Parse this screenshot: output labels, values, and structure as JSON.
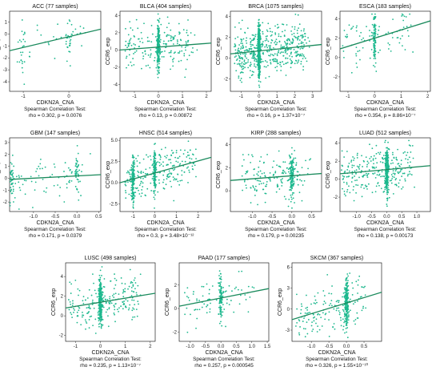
{
  "chart_data": [
    {
      "type": "scatter",
      "title": "ACC (77 samples)",
      "xlabel": "CDKN2A_CNA",
      "ylabel": "CCR6_exp",
      "xlim": [
        -1.3,
        0.7
      ],
      "ylim": [
        -4.8,
        1.9
      ],
      "xticks": [
        -1,
        0
      ],
      "yticks": [
        -4,
        -3,
        -2,
        -1,
        0,
        1
      ],
      "test_label": "Spearman Correlation Test:",
      "stats": "rho = 0.302, p = 0.0076",
      "trend": [
        [
          -1.3,
          -1.4
        ],
        [
          0.7,
          0.4
        ]
      ],
      "scatter": {
        "n": 77,
        "seed": 11,
        "xmin": -1.2,
        "xmax": 0.6,
        "ymin": -4.5,
        "ymax": 1.6,
        "clusters": [
          -1,
          0
        ]
      },
      "color": "#1db88e",
      "trend_color": "#1a8a5c"
    },
    {
      "type": "scatter",
      "title": "BLCA (404 samples)",
      "xlabel": "CDKN2A_CNA",
      "ylabel": "CCR6_exp",
      "xlim": [
        -1.6,
        2.2
      ],
      "ylim": [
        -4.8,
        4.5
      ],
      "xticks": [
        -1,
        0,
        1,
        2
      ],
      "yticks": [
        -4,
        -2,
        0,
        2,
        4
      ],
      "test_label": "Spearman Correlation Test:",
      "stats": "rho = 0.13, p = 0.00872",
      "trend": [
        [
          -1.6,
          0.0
        ],
        [
          2.2,
          0.8
        ]
      ],
      "scatter": {
        "n": 404,
        "seed": 23,
        "xmin": -1.4,
        "xmax": 2.0,
        "ymin": -4.5,
        "ymax": 4.2,
        "clusters": [
          0
        ]
      },
      "color": "#1db88e",
      "trend_color": "#1a8a5c"
    },
    {
      "type": "scatter",
      "title": "BRCA (1075 samples)",
      "xlabel": "CDKN2A_CNA",
      "ylabel": "CCR6_exp",
      "xlim": [
        -1.6,
        3.5
      ],
      "ylim": [
        -3.2,
        4.5
      ],
      "xticks": [
        -1,
        0,
        1,
        2,
        3
      ],
      "yticks": [
        -2,
        0,
        2,
        4
      ],
      "test_label": "Spearman Correlation Test:",
      "stats": "rho = 0.16, p = 1.37×10⁻⁷",
      "trend": [
        [
          -1.6,
          0.4
        ],
        [
          3.5,
          1.3
        ]
      ],
      "scatter": {
        "n": 1075,
        "seed": 37,
        "xmin": -1.4,
        "xmax": 3.3,
        "ymin": -2.8,
        "ymax": 4.2,
        "clusters": [
          0
        ]
      },
      "color": "#1db88e",
      "trend_color": "#1a8a5c"
    },
    {
      "type": "scatter",
      "title": "ESCA (183 samples)",
      "xlabel": "CDKN2A_CNA",
      "ylabel": "CCR6_exp",
      "xlim": [
        -1.3,
        2.1
      ],
      "ylim": [
        -3.5,
        4.8
      ],
      "xticks": [
        -1,
        0,
        1,
        2
      ],
      "yticks": [
        -2,
        0,
        2,
        4
      ],
      "test_label": "Spearman Correlation Test:",
      "stats": "rho = 0.354, p = 8.86×10⁻⁷",
      "trend": [
        [
          -1.3,
          0.9
        ],
        [
          2.1,
          3.8
        ]
      ],
      "scatter": {
        "n": 183,
        "seed": 41,
        "xmin": -1.2,
        "xmax": 1.9,
        "ymin": -3.2,
        "ymax": 4.5,
        "clusters": [
          0
        ]
      },
      "color": "#1db88e",
      "trend_color": "#1a8a5c"
    },
    {
      "type": "scatter",
      "title": "GBM (147 samples)",
      "xlabel": "CDKN2A_CNA",
      "ylabel": "CCR6_exp",
      "xlim": [
        -1.55,
        0.55
      ],
      "ylim": [
        -2.8,
        3.4
      ],
      "xticks": [
        -1.0,
        -0.5,
        0.0,
        0.5
      ],
      "yticks": [
        -2,
        -1,
        0,
        1,
        2,
        3
      ],
      "test_label": "Spearman Correlation Test:",
      "stats": "rho = 0.171, p = 0.0379",
      "trend": [
        [
          -1.55,
          -0.1
        ],
        [
          0.55,
          0.3
        ]
      ],
      "scatter": {
        "n": 147,
        "seed": 53,
        "xmin": -1.5,
        "xmax": 0.5,
        "ymin": -2.6,
        "ymax": 3.2,
        "clusters": [
          -1.5,
          0
        ]
      },
      "color": "#1db88e",
      "trend_color": "#1a8a5c"
    },
    {
      "type": "scatter",
      "title": "HNSC (514 samples)",
      "xlabel": "CDKN2A_CNA",
      "ylabel": "CCR6_exp",
      "xlim": [
        -1.6,
        2.6
      ],
      "ylim": [
        -3.4,
        5.3
      ],
      "xticks": [
        -1,
        0,
        1,
        2
      ],
      "yticks": [
        -2.5,
        0.0,
        2.5,
        5.0
      ],
      "test_label": "Spearman Correlation Test:",
      "stats": "rho = 0.3, p = 3.48×10⁻¹²",
      "trend": [
        [
          -1.6,
          0.0
        ],
        [
          2.6,
          3.0
        ]
      ],
      "scatter": {
        "n": 514,
        "seed": 67,
        "xmin": -1.4,
        "xmax": 2.4,
        "ymin": -3.0,
        "ymax": 5.0,
        "clusters": [
          -1,
          0
        ]
      },
      "color": "#1db88e",
      "trend_color": "#1a8a5c"
    },
    {
      "type": "scatter",
      "title": "KIRP (288 samples)",
      "xlabel": "CDKN2A_CNA",
      "ylabel": "CCR6_exp",
      "xlim": [
        -1.55,
        0.75
      ],
      "ylim": [
        -1.8,
        4.6
      ],
      "xticks": [
        -1.0,
        -0.5,
        0.0,
        0.5
      ],
      "yticks": [
        0,
        2,
        4
      ],
      "test_label": "Spearman Correlation Test:",
      "stats": "rho = 0.179, p = 0.00235",
      "trend": [
        [
          -1.55,
          0.9
        ],
        [
          0.75,
          1.5
        ]
      ],
      "scatter": {
        "n": 288,
        "seed": 71,
        "xmin": -1.3,
        "xmax": 0.7,
        "ymin": -1.5,
        "ymax": 4.3,
        "clusters": [
          0
        ]
      },
      "color": "#1db88e",
      "trend_color": "#1a8a5c"
    },
    {
      "type": "scatter",
      "title": "LUAD (512 samples)",
      "xlabel": "CDKN2A_CNA",
      "ylabel": "CCR6_exp",
      "xlim": [
        -1.55,
        1.45
      ],
      "ylim": [
        -3.6,
        4.6
      ],
      "xticks": [
        -1.0,
        -0.5,
        0.0,
        0.5,
        1.0
      ],
      "yticks": [
        -2,
        0,
        2,
        4
      ],
      "test_label": "Spearman Correlation Test:",
      "stats": "rho = 0.138, p = 0.00173",
      "trend": [
        [
          -1.55,
          0.6
        ],
        [
          1.45,
          1.5
        ]
      ],
      "scatter": {
        "n": 512,
        "seed": 83,
        "xmin": -1.5,
        "xmax": 1.3,
        "ymin": -3.3,
        "ymax": 4.3,
        "clusters": [
          0
        ]
      },
      "color": "#1db88e",
      "trend_color": "#1a8a5c"
    },
    {
      "type": "scatter",
      "title": "LUSC (498 samples)",
      "xlabel": "CDKN2A_CNA",
      "ylabel": "CCR6_exp",
      "xlim": [
        -1.4,
        2.2
      ],
      "ylim": [
        -2.6,
        5.4
      ],
      "xticks": [
        -1,
        0,
        1,
        2
      ],
      "yticks": [
        -2,
        0,
        2,
        4
      ],
      "test_label": "Spearman Correlation Test:",
      "stats": "rho = 0.235, p = 1.13×10⁻⁷",
      "trend": [
        [
          -1.4,
          0.8
        ],
        [
          2.2,
          2.3
        ]
      ],
      "scatter": {
        "n": 498,
        "seed": 97,
        "xmin": -1.3,
        "xmax": 2.0,
        "ymin": -2.3,
        "ymax": 5.0,
        "clusters": [
          0
        ]
      },
      "color": "#1db88e",
      "trend_color": "#1a8a5c"
    },
    {
      "type": "scatter",
      "title": "PAAD (177 samples)",
      "xlabel": "CDKN2A_CNA",
      "ylabel": "CCR6_exp",
      "xlim": [
        -1.35,
        1.55
      ],
      "ylim": [
        -2.8,
        3.9
      ],
      "xticks": [
        -1.0,
        -0.5,
        0.0,
        0.5,
        1.0,
        1.5
      ],
      "yticks": [
        -2,
        0,
        2
      ],
      "test_label": "Spearman Correlation Test:",
      "stats": "rho = 0.257, p = 0.000545",
      "trend": [
        [
          -1.35,
          0.2
        ],
        [
          1.55,
          1.7
        ]
      ],
      "scatter": {
        "n": 177,
        "seed": 101,
        "xmin": -1.25,
        "xmax": 1.45,
        "ymin": -2.6,
        "ymax": 3.6,
        "clusters": [
          0
        ]
      },
      "color": "#1db88e",
      "trend_color": "#1a8a5c"
    },
    {
      "type": "scatter",
      "title": "SKCM (367 samples)",
      "xlabel": "CDKN2A_CNA",
      "ylabel": "CCR6_exp",
      "xlim": [
        -1.55,
        1.0
      ],
      "ylim": [
        -4.6,
        6.6
      ],
      "xticks": [
        -1.0,
        -0.5,
        0.0,
        0.5
      ],
      "yticks": [
        -3,
        0,
        3,
        6
      ],
      "test_label": "Spearman Correlation Test:",
      "stats": "rho = 0.326, p = 1.55×10⁻¹⁰",
      "trend": [
        [
          -1.55,
          -1.5
        ],
        [
          1.0,
          2.4
        ]
      ],
      "scatter": {
        "n": 367,
        "seed": 113,
        "xmin": -1.45,
        "xmax": 0.9,
        "ymin": -4.3,
        "ymax": 6.3,
        "clusters": [
          0
        ]
      },
      "color": "#1db88e",
      "trend_color": "#1a8a5c"
    }
  ]
}
